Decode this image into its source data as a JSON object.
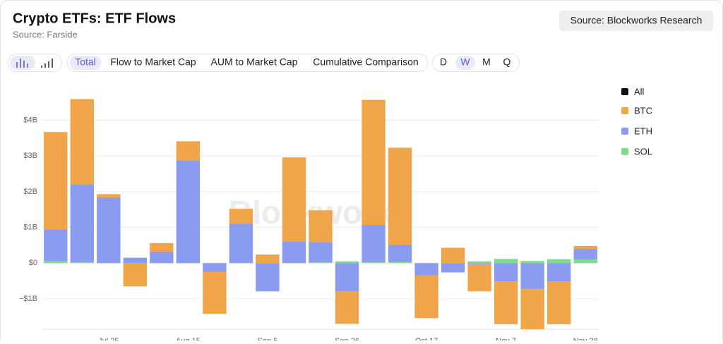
{
  "header": {
    "title": "Crypto ETFs: ETF Flows",
    "subtitle": "Source: Farside",
    "source_button": "Source: Blockworks Research"
  },
  "toolbar": {
    "tabs": [
      "Total",
      "Flow to Market Cap",
      "AUM to Market Cap",
      "Cumulative Comparison"
    ],
    "periods": [
      "D",
      "W",
      "M",
      "Q"
    ]
  },
  "watermark": "Blockworks",
  "chart_data": {
    "type": "stacked_bar",
    "categories": [
      null,
      null,
      "Jul 25",
      null,
      null,
      "Aug 15",
      null,
      null,
      "Sep 5",
      null,
      null,
      "Sep 26",
      null,
      null,
      "Oct 17",
      null,
      null,
      "Nov 7",
      null,
      null,
      "Nov 28"
    ],
    "legend_all": {
      "name": "All",
      "color": "#111111"
    },
    "series": [
      {
        "name": "BTC",
        "color": "#f0a54b",
        "values": [
          2.72,
          2.38,
          0.1,
          -0.65,
          0.24,
          0.53,
          -1.17,
          0.42,
          0.24,
          2.35,
          0.89,
          -0.91,
          3.5,
          2.71,
          -1.2,
          0.43,
          -0.76,
          -1.2,
          -1.12,
          -1.2,
          0.08
        ]
      },
      {
        "name": "ETH",
        "color": "#8b9cf0",
        "values": [
          0.9,
          2.19,
          1.83,
          0.15,
          0.32,
          2.88,
          -0.25,
          1.1,
          -0.79,
          0.61,
          0.57,
          -0.79,
          1.05,
          0.49,
          -0.34,
          -0.26,
          -0.03,
          -0.51,
          -0.73,
          -0.51,
          0.3
        ]
      },
      {
        "name": "SOL",
        "color": "#7fdc8f",
        "values": [
          0.05,
          0.02,
          0,
          0,
          0,
          0,
          0,
          0,
          0,
          0,
          0.02,
          0.05,
          0.02,
          0.03,
          0,
          0,
          0.05,
          0.12,
          0.06,
          0.11,
          0.1
        ]
      }
    ],
    "ylim": [
      -1.85,
      4.8
    ],
    "yticks": [
      {
        "value": -1,
        "label": "−$1B"
      },
      {
        "value": 0,
        "label": "$0"
      },
      {
        "value": 1,
        "label": "$1B"
      },
      {
        "value": 2,
        "label": "$2B"
      },
      {
        "value": 3,
        "label": "$3B"
      },
      {
        "value": 4,
        "label": "$4B"
      }
    ],
    "grid": true
  }
}
